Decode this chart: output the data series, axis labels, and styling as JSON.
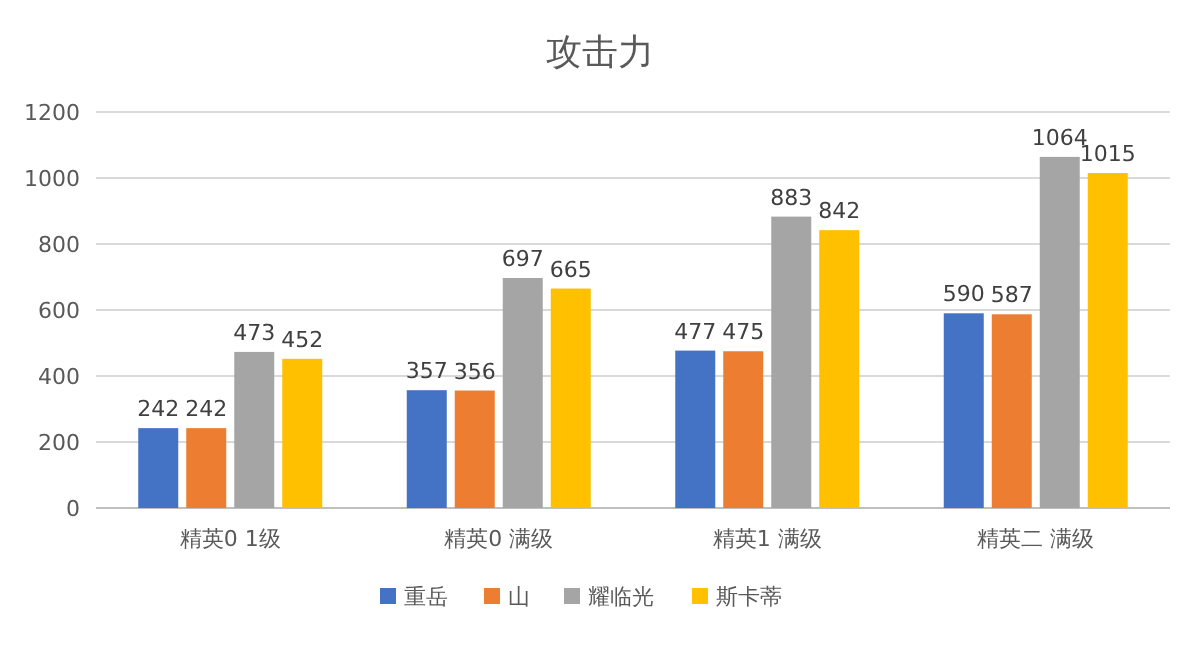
{
  "chart_data": {
    "type": "bar",
    "title": "攻击力",
    "categories": [
      "精英0 1级",
      "精英0 满级",
      "精英1 满级",
      "精英二 满级"
    ],
    "series": [
      {
        "name": "重岳",
        "color": "#4472c4",
        "values": [
          242,
          357,
          477,
          590
        ]
      },
      {
        "name": "山",
        "color": "#ed7d31",
        "values": [
          242,
          356,
          475,
          587
        ]
      },
      {
        "name": "耀临光",
        "color": "#a5a5a5",
        "values": [
          473,
          697,
          883,
          1064
        ]
      },
      {
        "name": "斯卡蒂",
        "color": "#ffc000",
        "values": [
          452,
          665,
          842,
          1015
        ]
      }
    ],
    "ylim": [
      0,
      1200
    ],
    "yticks": [
      0,
      200,
      400,
      600,
      800,
      1000,
      1200
    ],
    "grid": "y",
    "legend": "bottom",
    "data_labels": true
  }
}
